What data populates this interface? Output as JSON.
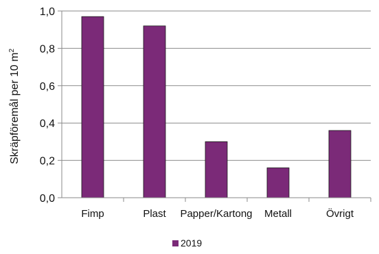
{
  "chart_data": {
    "type": "bar",
    "categories": [
      "Fimp",
      "Plast",
      "Papper/Kartong",
      "Metall",
      "Övrigt"
    ],
    "series": [
      {
        "name": "2019",
        "values": [
          0.97,
          0.92,
          0.3,
          0.16,
          0.36
        ],
        "color": "#7b2a78"
      }
    ],
    "ylabel": "Skräpföremål per 10 m",
    "ylabel_superscript": "2",
    "ylim": [
      0,
      1.0
    ],
    "yticks": [
      "0,0",
      "0,2",
      "0,4",
      "0,6",
      "0,8",
      "1,0"
    ],
    "yticks_values": [
      0,
      0.2,
      0.4,
      0.6,
      0.8,
      1.0
    ],
    "grid": true,
    "legend": "bottom"
  }
}
